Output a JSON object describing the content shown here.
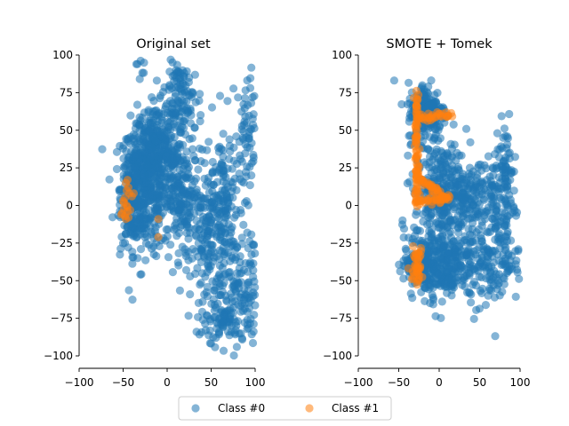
{
  "colors": {
    "class0": "#1f77b4",
    "class1": "#ff7f0e",
    "legend_frame": "#cccccc"
  },
  "legend": {
    "entries": [
      "Class #0",
      "Class #1"
    ],
    "placement": "bottom-center"
  },
  "chart_data": [
    {
      "type": "scatter",
      "title": "Original set",
      "xlabel": "",
      "ylabel": "",
      "xlim": [
        -100,
        100
      ],
      "ylim": [
        -100,
        100
      ],
      "xticks": [
        -100,
        -50,
        0,
        50,
        100
      ],
      "yticks": [
        -100,
        -75,
        -50,
        -25,
        0,
        25,
        50,
        75,
        100
      ],
      "grid": false,
      "series": [
        {
          "name": "Class #0",
          "clusters": [
            {
              "x": -25,
              "y": 12,
              "sx": 14,
              "sy": 22,
              "n": 420
            },
            {
              "x": -40,
              "y": 8,
              "sx": 6,
              "sy": 16,
              "n": 140
            },
            {
              "x": -15,
              "y": 40,
              "sx": 10,
              "sy": 12,
              "n": 140
            },
            {
              "x": 5,
              "y": 35,
              "sx": 10,
              "sy": 25,
              "n": 170
            },
            {
              "x": 20,
              "y": 0,
              "sx": 12,
              "sy": 18,
              "n": 140
            },
            {
              "x": 20,
              "y": 70,
              "sx": 10,
              "sy": 12,
              "n": 70
            },
            {
              "x": 50,
              "y": -25,
              "sx": 12,
              "sy": 28,
              "n": 170
            },
            {
              "x": 65,
              "y": 5,
              "sx": 12,
              "sy": 25,
              "n": 110
            },
            {
              "x": 75,
              "y": -55,
              "sx": 12,
              "sy": 20,
              "n": 110
            },
            {
              "x": 90,
              "y": 40,
              "sx": 8,
              "sy": 25,
              "n": 80
            },
            {
              "x": 95,
              "y": -60,
              "sx": 6,
              "sy": 20,
              "n": 50
            },
            {
              "x": 60,
              "y": -75,
              "sx": 8,
              "sy": 6,
              "n": 40
            },
            {
              "x": -30,
              "y": 91,
              "sx": 3,
              "sy": 4,
              "n": 6
            },
            {
              "x": 10,
              "y": 82,
              "sx": 5,
              "sy": 5,
              "n": 10
            }
          ]
        },
        {
          "name": "Class #1",
          "points": [
            [
              -45,
              17
            ],
            [
              -47,
              15
            ],
            [
              -44,
              12
            ],
            [
              -46,
              10
            ],
            [
              -43,
              8
            ],
            [
              -48,
              5
            ],
            [
              -50,
              3
            ],
            [
              -46,
              0
            ],
            [
              -49,
              -2
            ],
            [
              -51,
              -5
            ],
            [
              -48,
              -7
            ],
            [
              -45,
              -4
            ],
            [
              -44,
              -8
            ],
            [
              -42,
              -3
            ],
            [
              -40,
              6
            ],
            [
              -38,
              8
            ],
            [
              -47,
              -9
            ],
            [
              -52,
              -6
            ],
            [
              -49,
              2
            ],
            [
              -45,
              -1
            ],
            [
              -10,
              -9
            ],
            [
              -10,
              -21
            ]
          ]
        }
      ]
    },
    {
      "type": "scatter",
      "title": "SMOTE + Tomek",
      "xlabel": "",
      "ylabel": "",
      "xlim": [
        -100,
        100
      ],
      "ylim": [
        -100,
        100
      ],
      "xticks": [
        -100,
        -50,
        0,
        50,
        100
      ],
      "yticks": [
        -100,
        -75,
        -50,
        -25,
        0,
        25,
        50,
        75,
        100
      ],
      "grid": false,
      "series": [
        {
          "name": "Class #0",
          "clusters": [
            {
              "x": -15,
              "y": 62,
              "sx": 12,
              "sy": 10,
              "n": 200
            },
            {
              "x": 5,
              "y": 10,
              "sx": 18,
              "sy": 15,
              "n": 300
            },
            {
              "x": 0,
              "y": -38,
              "sx": 22,
              "sy": 12,
              "n": 350
            },
            {
              "x": 45,
              "y": 5,
              "sx": 15,
              "sy": 15,
              "n": 120
            },
            {
              "x": 60,
              "y": -40,
              "sx": 15,
              "sy": 15,
              "n": 120
            },
            {
              "x": 80,
              "y": 20,
              "sx": 8,
              "sy": 15,
              "n": 80
            },
            {
              "x": 85,
              "y": -20,
              "sx": 8,
              "sy": 20,
              "n": 60
            },
            {
              "x": -25,
              "y": -45,
              "sx": 8,
              "sy": 5,
              "n": 60
            }
          ]
        },
        {
          "name": "Class #1",
          "segments": [
            {
              "from": [
                -28,
                75
              ],
              "to": [
                -28,
                2
              ],
              "n": 70
            },
            {
              "from": [
                -26,
                58
              ],
              "to": [
                15,
                60
              ],
              "n": 30
            },
            {
              "from": [
                -28,
                20
              ],
              "to": [
                10,
                4
              ],
              "n": 40
            },
            {
              "from": [
                -30,
                2
              ],
              "to": [
                12,
                5
              ],
              "n": 30
            }
          ],
          "clusters": [
            {
              "x": -28,
              "y": -40,
              "sx": 4,
              "sy": 6,
              "n": 40
            }
          ]
        }
      ]
    }
  ]
}
